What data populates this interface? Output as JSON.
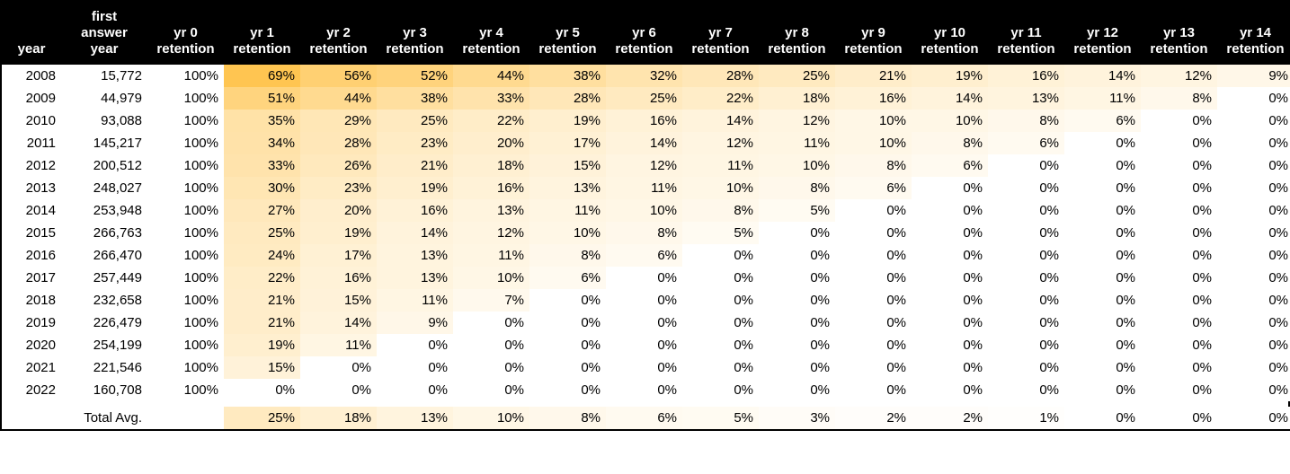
{
  "table": {
    "type": "heatmap-table",
    "background_color": "#ffffff",
    "border_color": "#000000",
    "header_bg": "#000000",
    "header_fg": "#ffffff",
    "font_family": "-apple-system, Segoe UI, Arial, sans-serif",
    "font_size_body": 15,
    "font_size_header": 15,
    "heatmap": {
      "min_color": "#ffffff",
      "max_color": "#ffc551",
      "min_value": 0,
      "max_value": 69,
      "applies_to_columns": [
        "yr1",
        "yr2",
        "yr3",
        "yr4",
        "yr5",
        "yr6",
        "yr7",
        "yr8",
        "yr9",
        "yr10",
        "yr11",
        "yr12",
        "yr13",
        "yr14"
      ]
    },
    "columns": [
      {
        "key": "year",
        "label": "year",
        "align": "right"
      },
      {
        "key": "first",
        "label": "first\nanswer\nyear",
        "align": "right"
      },
      {
        "key": "yr0",
        "label": "yr 0\nretention",
        "align": "right"
      },
      {
        "key": "yr1",
        "label": "yr 1\nretention",
        "align": "right"
      },
      {
        "key": "yr2",
        "label": "yr 2\nretention",
        "align": "right"
      },
      {
        "key": "yr3",
        "label": "yr 3\nretention",
        "align": "right"
      },
      {
        "key": "yr4",
        "label": "yr 4\nretention",
        "align": "right"
      },
      {
        "key": "yr5",
        "label": "yr 5\nretention",
        "align": "right"
      },
      {
        "key": "yr6",
        "label": "yr 6\nretention",
        "align": "right"
      },
      {
        "key": "yr7",
        "label": "yr 7\nretention",
        "align": "right"
      },
      {
        "key": "yr8",
        "label": "yr 8\nretention",
        "align": "right"
      },
      {
        "key": "yr9",
        "label": "yr 9\nretention",
        "align": "right"
      },
      {
        "key": "yr10",
        "label": "yr 10\nretention",
        "align": "right"
      },
      {
        "key": "yr11",
        "label": "yr 11\nretention",
        "align": "right"
      },
      {
        "key": "yr12",
        "label": "yr 12\nretention",
        "align": "right"
      },
      {
        "key": "yr13",
        "label": "yr 13\nretention",
        "align": "right"
      },
      {
        "key": "yr14",
        "label": "yr 14\nretention",
        "align": "right"
      }
    ],
    "rows": [
      {
        "year": "2008",
        "first": "15,772",
        "yr0": "100%",
        "yr1": "69%",
        "yr2": "56%",
        "yr3": "52%",
        "yr4": "44%",
        "yr5": "38%",
        "yr6": "32%",
        "yr7": "28%",
        "yr8": "25%",
        "yr9": "21%",
        "yr10": "19%",
        "yr11": "16%",
        "yr12": "14%",
        "yr13": "12%",
        "yr14": "9%"
      },
      {
        "year": "2009",
        "first": "44,979",
        "yr0": "100%",
        "yr1": "51%",
        "yr2": "44%",
        "yr3": "38%",
        "yr4": "33%",
        "yr5": "28%",
        "yr6": "25%",
        "yr7": "22%",
        "yr8": "18%",
        "yr9": "16%",
        "yr10": "14%",
        "yr11": "13%",
        "yr12": "11%",
        "yr13": "8%",
        "yr14": "0%"
      },
      {
        "year": "2010",
        "first": "93,088",
        "yr0": "100%",
        "yr1": "35%",
        "yr2": "29%",
        "yr3": "25%",
        "yr4": "22%",
        "yr5": "19%",
        "yr6": "16%",
        "yr7": "14%",
        "yr8": "12%",
        "yr9": "10%",
        "yr10": "10%",
        "yr11": "8%",
        "yr12": "6%",
        "yr13": "0%",
        "yr14": "0%"
      },
      {
        "year": "2011",
        "first": "145,217",
        "yr0": "100%",
        "yr1": "34%",
        "yr2": "28%",
        "yr3": "23%",
        "yr4": "20%",
        "yr5": "17%",
        "yr6": "14%",
        "yr7": "12%",
        "yr8": "11%",
        "yr9": "10%",
        "yr10": "8%",
        "yr11": "6%",
        "yr12": "0%",
        "yr13": "0%",
        "yr14": "0%"
      },
      {
        "year": "2012",
        "first": "200,512",
        "yr0": "100%",
        "yr1": "33%",
        "yr2": "26%",
        "yr3": "21%",
        "yr4": "18%",
        "yr5": "15%",
        "yr6": "12%",
        "yr7": "11%",
        "yr8": "10%",
        "yr9": "8%",
        "yr10": "6%",
        "yr11": "0%",
        "yr12": "0%",
        "yr13": "0%",
        "yr14": "0%"
      },
      {
        "year": "2013",
        "first": "248,027",
        "yr0": "100%",
        "yr1": "30%",
        "yr2": "23%",
        "yr3": "19%",
        "yr4": "16%",
        "yr5": "13%",
        "yr6": "11%",
        "yr7": "10%",
        "yr8": "8%",
        "yr9": "6%",
        "yr10": "0%",
        "yr11": "0%",
        "yr12": "0%",
        "yr13": "0%",
        "yr14": "0%"
      },
      {
        "year": "2014",
        "first": "253,948",
        "yr0": "100%",
        "yr1": "27%",
        "yr2": "20%",
        "yr3": "16%",
        "yr4": "13%",
        "yr5": "11%",
        "yr6": "10%",
        "yr7": "8%",
        "yr8": "5%",
        "yr9": "0%",
        "yr10": "0%",
        "yr11": "0%",
        "yr12": "0%",
        "yr13": "0%",
        "yr14": "0%"
      },
      {
        "year": "2015",
        "first": "266,763",
        "yr0": "100%",
        "yr1": "25%",
        "yr2": "19%",
        "yr3": "14%",
        "yr4": "12%",
        "yr5": "10%",
        "yr6": "8%",
        "yr7": "5%",
        "yr8": "0%",
        "yr9": "0%",
        "yr10": "0%",
        "yr11": "0%",
        "yr12": "0%",
        "yr13": "0%",
        "yr14": "0%"
      },
      {
        "year": "2016",
        "first": "266,470",
        "yr0": "100%",
        "yr1": "24%",
        "yr2": "17%",
        "yr3": "13%",
        "yr4": "11%",
        "yr5": "8%",
        "yr6": "6%",
        "yr7": "0%",
        "yr8": "0%",
        "yr9": "0%",
        "yr10": "0%",
        "yr11": "0%",
        "yr12": "0%",
        "yr13": "0%",
        "yr14": "0%"
      },
      {
        "year": "2017",
        "first": "257,449",
        "yr0": "100%",
        "yr1": "22%",
        "yr2": "16%",
        "yr3": "13%",
        "yr4": "10%",
        "yr5": "6%",
        "yr6": "0%",
        "yr7": "0%",
        "yr8": "0%",
        "yr9": "0%",
        "yr10": "0%",
        "yr11": "0%",
        "yr12": "0%",
        "yr13": "0%",
        "yr14": "0%"
      },
      {
        "year": "2018",
        "first": "232,658",
        "yr0": "100%",
        "yr1": "21%",
        "yr2": "15%",
        "yr3": "11%",
        "yr4": "7%",
        "yr5": "0%",
        "yr6": "0%",
        "yr7": "0%",
        "yr8": "0%",
        "yr9": "0%",
        "yr10": "0%",
        "yr11": "0%",
        "yr12": "0%",
        "yr13": "0%",
        "yr14": "0%"
      },
      {
        "year": "2019",
        "first": "226,479",
        "yr0": "100%",
        "yr1": "21%",
        "yr2": "14%",
        "yr3": "9%",
        "yr4": "0%",
        "yr5": "0%",
        "yr6": "0%",
        "yr7": "0%",
        "yr8": "0%",
        "yr9": "0%",
        "yr10": "0%",
        "yr11": "0%",
        "yr12": "0%",
        "yr13": "0%",
        "yr14": "0%"
      },
      {
        "year": "2020",
        "first": "254,199",
        "yr0": "100%",
        "yr1": "19%",
        "yr2": "11%",
        "yr3": "0%",
        "yr4": "0%",
        "yr5": "0%",
        "yr6": "0%",
        "yr7": "0%",
        "yr8": "0%",
        "yr9": "0%",
        "yr10": "0%",
        "yr11": "0%",
        "yr12": "0%",
        "yr13": "0%",
        "yr14": "0%"
      },
      {
        "year": "2021",
        "first": "221,546",
        "yr0": "100%",
        "yr1": "15%",
        "yr2": "0%",
        "yr3": "0%",
        "yr4": "0%",
        "yr5": "0%",
        "yr6": "0%",
        "yr7": "0%",
        "yr8": "0%",
        "yr9": "0%",
        "yr10": "0%",
        "yr11": "0%",
        "yr12": "0%",
        "yr13": "0%",
        "yr14": "0%"
      },
      {
        "year": "2022",
        "first": "160,708",
        "yr0": "100%",
        "yr1": "0%",
        "yr2": "0%",
        "yr3": "0%",
        "yr4": "0%",
        "yr5": "0%",
        "yr6": "0%",
        "yr7": "0%",
        "yr8": "0%",
        "yr9": "0%",
        "yr10": "0%",
        "yr11": "0%",
        "yr12": "0%",
        "yr13": "0%",
        "yr14": "0%"
      }
    ],
    "total_row": {
      "label": "Total Avg.",
      "yr0": "",
      "yr1": "25%",
      "yr2": "18%",
      "yr3": "13%",
      "yr4": "10%",
      "yr5": "8%",
      "yr6": "6%",
      "yr7": "5%",
      "yr8": "3%",
      "yr9": "2%",
      "yr10": "2%",
      "yr11": "1%",
      "yr12": "0%",
      "yr13": "0%",
      "yr14": "0%"
    }
  }
}
